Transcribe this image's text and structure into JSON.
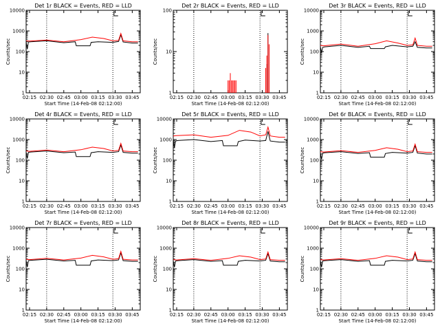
{
  "chart_data": [
    {
      "type": "line",
      "title": "Det 1r BLACK = Events, RED = LLD",
      "xlabel": "Start Time (14-Feb-08 02:12:00)",
      "ylabel": "Counts/sec",
      "xlim": [
        "02:12",
        "03:52"
      ],
      "ylim": [
        1,
        10000
      ],
      "yscale": "log",
      "x_ticks": [
        "02:15",
        "02:30",
        "02:45",
        "03:00",
        "03:15",
        "03:30",
        "03:45"
      ],
      "y_ticks": [
        "1",
        "10",
        "100",
        "1000",
        "10000"
      ],
      "series": [
        {
          "name": "Events",
          "color": "#000000",
          "x": [
            "02:12",
            "02:13",
            "02:14",
            "02:16",
            "02:30",
            "02:45",
            "02:55",
            "02:56",
            "03:08",
            "03:09",
            "03:15",
            "03:28",
            "03:33",
            "03:35",
            "03:37",
            "03:45",
            "03:50"
          ],
          "values": [
            300,
            130,
            290,
            300,
            330,
            270,
            300,
            190,
            190,
            280,
            300,
            280,
            310,
            650,
            290,
            260,
            260
          ]
        },
        {
          "name": "LLD",
          "color": "#ff0000",
          "x": [
            "02:12",
            "02:15",
            "02:30",
            "02:45",
            "03:00",
            "03:10",
            "03:20",
            "03:28",
            "03:33",
            "03:35",
            "03:37",
            "03:45",
            "03:50"
          ],
          "values": [
            330,
            320,
            360,
            300,
            380,
            500,
            430,
            330,
            350,
            750,
            330,
            300,
            300
          ]
        }
      ],
      "vlines": [
        "02:30",
        "03:28"
      ]
    },
    {
      "type": "line",
      "title": "Det 2r BLACK = Events, RED = LLD",
      "xlabel": "Start Time (14-Feb-08 02:12:00)",
      "ylabel": "Counts/sec",
      "xlim": [
        "02:12",
        "03:52"
      ],
      "ylim": [
        1,
        100
      ],
      "yscale": "log",
      "x_ticks": [
        "02:15",
        "02:30",
        "02:45",
        "03:00",
        "03:15",
        "03:30",
        "03:45"
      ],
      "y_ticks": [
        "1",
        "10",
        "100"
      ],
      "series": [
        {
          "name": "Events",
          "color": "#000000",
          "x": [
            "03:33",
            "03:34",
            "03:35"
          ],
          "values": [
            1,
            5,
            28
          ]
        },
        {
          "name": "LLD",
          "color": "#ff0000",
          "x": [
            "03:00",
            "03:01",
            "03:02",
            "03:03",
            "03:04",
            "03:05",
            "03:06",
            "03:07",
            "03:33",
            "03:34",
            "03:35",
            "03:36"
          ],
          "values": [
            2,
            2,
            3,
            2,
            2,
            2,
            2,
            2,
            4,
            8,
            25,
            15
          ]
        }
      ],
      "vlines": [
        "02:30",
        "03:28"
      ]
    },
    {
      "type": "line",
      "title": "Det 3r BLACK = Events, RED = LLD",
      "xlabel": "Start Time (14-Feb-08 02:12:00)",
      "ylabel": "Counts/sec",
      "xlim": [
        "02:12",
        "03:52"
      ],
      "ylim": [
        1,
        10000
      ],
      "yscale": "log",
      "x_ticks": [
        "02:15",
        "02:30",
        "02:45",
        "03:00",
        "03:15",
        "03:30",
        "03:45"
      ],
      "y_ticks": [
        "1",
        "10",
        "100",
        "1000",
        "10000"
      ],
      "series": [
        {
          "name": "Events",
          "color": "#000000",
          "x": [
            "02:12",
            "02:13",
            "02:14",
            "02:16",
            "02:30",
            "02:45",
            "02:55",
            "02:56",
            "03:08",
            "03:09",
            "03:15",
            "03:28",
            "03:33",
            "03:35",
            "03:37",
            "03:45",
            "03:50"
          ],
          "values": [
            170,
            90,
            160,
            170,
            200,
            160,
            180,
            140,
            140,
            170,
            200,
            170,
            180,
            300,
            160,
            150,
            150
          ]
        },
        {
          "name": "LLD",
          "color": "#ff0000",
          "x": [
            "02:12",
            "02:15",
            "02:30",
            "02:45",
            "03:00",
            "03:10",
            "03:20",
            "03:28",
            "03:33",
            "03:35",
            "03:37",
            "03:45",
            "03:50"
          ],
          "values": [
            200,
            190,
            230,
            180,
            240,
            330,
            260,
            200,
            210,
            450,
            200,
            180,
            180
          ]
        }
      ],
      "vlines": [
        "02:30",
        "03:28"
      ]
    },
    {
      "type": "line",
      "title": "Det 4r BLACK = Events, RED = LLD",
      "xlabel": "Start Time (14-Feb-08 02:12:00)",
      "ylabel": "Counts/sec",
      "xlim": [
        "02:12",
        "03:52"
      ],
      "ylim": [
        1,
        10000
      ],
      "yscale": "log",
      "x_ticks": [
        "02:15",
        "02:30",
        "02:45",
        "03:00",
        "03:15",
        "03:30",
        "03:45"
      ],
      "y_ticks": [
        "1",
        "10",
        "100",
        "1000",
        "10000"
      ],
      "series": [
        {
          "name": "Events",
          "color": "#000000",
          "x": [
            "02:12",
            "02:13",
            "02:14",
            "02:16",
            "02:30",
            "02:45",
            "02:55",
            "02:56",
            "03:08",
            "03:09",
            "03:15",
            "03:28",
            "03:33",
            "03:35",
            "03:37",
            "03:45",
            "03:50"
          ],
          "values": [
            250,
            120,
            240,
            250,
            280,
            230,
            250,
            150,
            150,
            230,
            260,
            240,
            260,
            550,
            240,
            220,
            220
          ]
        },
        {
          "name": "LLD",
          "color": "#ff0000",
          "x": [
            "02:12",
            "02:15",
            "02:30",
            "02:45",
            "03:00",
            "03:10",
            "03:20",
            "03:28",
            "03:33",
            "03:35",
            "03:37",
            "03:45",
            "03:50"
          ],
          "values": [
            280,
            270,
            310,
            260,
            320,
            430,
            370,
            280,
            300,
            650,
            280,
            260,
            260
          ]
        }
      ],
      "vlines": [
        "02:30",
        "03:28"
      ]
    },
    {
      "type": "line",
      "title": "Det 5r BLACK = Events, RED = LLD",
      "xlabel": "Start Time (14-Feb-08 02:12:00)",
      "ylabel": "Counts/sec",
      "xlim": [
        "02:12",
        "03:52"
      ],
      "ylim": [
        1,
        10000
      ],
      "yscale": "log",
      "x_ticks": [
        "02:15",
        "02:30",
        "02:45",
        "03:00",
        "03:15",
        "03:30",
        "03:45"
      ],
      "y_ticks": [
        "1",
        "10",
        "100",
        "1000",
        "10000"
      ],
      "series": [
        {
          "name": "Events",
          "color": "#000000",
          "x": [
            "02:12",
            "02:13",
            "02:14",
            "02:16",
            "02:30",
            "02:45",
            "02:55",
            "02:56",
            "03:08",
            "03:09",
            "03:15",
            "03:28",
            "03:33",
            "03:35",
            "03:37",
            "03:45",
            "03:50"
          ],
          "values": [
            900,
            400,
            850,
            900,
            1000,
            800,
            900,
            500,
            500,
            800,
            950,
            850,
            900,
            2500,
            850,
            750,
            750
          ]
        },
        {
          "name": "LLD",
          "color": "#ff0000",
          "x": [
            "02:12",
            "02:15",
            "02:30",
            "02:45",
            "03:00",
            "03:10",
            "03:20",
            "03:28",
            "03:33",
            "03:35",
            "03:37",
            "03:45",
            "03:50"
          ],
          "values": [
            1500,
            1550,
            1700,
            1300,
            1600,
            2800,
            2300,
            1500,
            1700,
            4000,
            1500,
            1300,
            1300
          ]
        }
      ],
      "vlines": [
        "02:30",
        "03:28"
      ]
    },
    {
      "type": "line",
      "title": "Det 6r BLACK = Events, RED = LLD",
      "xlabel": "Start Time (14-Feb-08 02:12:00)",
      "ylabel": "Counts/sec",
      "xlim": [
        "02:12",
        "03:52"
      ],
      "ylim": [
        1,
        10000
      ],
      "yscale": "log",
      "x_ticks": [
        "02:15",
        "02:30",
        "02:45",
        "03:00",
        "03:15",
        "03:30",
        "03:45"
      ],
      "y_ticks": [
        "1",
        "10",
        "100",
        "1000",
        "10000"
      ],
      "series": [
        {
          "name": "Events",
          "color": "#000000",
          "x": [
            "02:12",
            "02:13",
            "02:14",
            "02:16",
            "02:30",
            "02:45",
            "02:55",
            "02:56",
            "03:08",
            "03:09",
            "03:15",
            "03:28",
            "03:33",
            "03:35",
            "03:37",
            "03:45",
            "03:50"
          ],
          "values": [
            230,
            110,
            220,
            230,
            260,
            210,
            230,
            140,
            140,
            210,
            240,
            220,
            240,
            500,
            220,
            200,
            200
          ]
        },
        {
          "name": "LLD",
          "color": "#ff0000",
          "x": [
            "02:12",
            "02:15",
            "02:30",
            "02:45",
            "03:00",
            "03:10",
            "03:20",
            "03:28",
            "03:33",
            "03:35",
            "03:37",
            "03:45",
            "03:50"
          ],
          "values": [
            260,
            250,
            290,
            240,
            300,
            400,
            340,
            260,
            280,
            600,
            260,
            240,
            240
          ]
        }
      ],
      "vlines": [
        "02:30",
        "03:28"
      ]
    },
    {
      "type": "line",
      "title": "Det 7r BLACK = Events, RED = LLD",
      "xlabel": "Start Time (14-Feb-08 02:12:00)",
      "ylabel": "Counts/sec",
      "xlim": [
        "02:12",
        "03:52"
      ],
      "ylim": [
        1,
        10000
      ],
      "yscale": "log",
      "x_ticks": [
        "02:15",
        "02:30",
        "02:45",
        "03:00",
        "03:15",
        "03:30",
        "03:45"
      ],
      "y_ticks": [
        "1",
        "10",
        "100",
        "1000",
        "10000"
      ],
      "series": [
        {
          "name": "Events",
          "color": "#000000",
          "x": [
            "02:12",
            "02:13",
            "02:14",
            "02:16",
            "02:30",
            "02:45",
            "02:55",
            "02:56",
            "03:08",
            "03:09",
            "03:15",
            "03:28",
            "03:33",
            "03:35",
            "03:37",
            "03:45",
            "03:50"
          ],
          "values": [
            260,
            120,
            250,
            260,
            290,
            240,
            260,
            150,
            150,
            240,
            270,
            250,
            270,
            600,
            250,
            230,
            230
          ]
        },
        {
          "name": "LLD",
          "color": "#ff0000",
          "x": [
            "02:12",
            "02:15",
            "02:30",
            "02:45",
            "03:00",
            "03:10",
            "03:20",
            "03:28",
            "03:33",
            "03:35",
            "03:37",
            "03:45",
            "03:50"
          ],
          "values": [
            290,
            280,
            320,
            270,
            330,
            450,
            380,
            290,
            310,
            700,
            290,
            270,
            270
          ]
        }
      ],
      "vlines": [
        "02:30",
        "03:28"
      ]
    },
    {
      "type": "line",
      "title": "Det 8r BLACK = Events, RED = LLD",
      "xlabel": "Start Time (14-Feb-08 02:12:00)",
      "ylabel": "Counts/sec",
      "xlim": [
        "02:12",
        "03:52"
      ],
      "ylim": [
        1,
        10000
      ],
      "yscale": "log",
      "x_ticks": [
        "02:15",
        "02:30",
        "02:45",
        "03:00",
        "03:15",
        "03:30",
        "03:45"
      ],
      "y_ticks": [
        "1",
        "10",
        "100",
        "1000",
        "10000"
      ],
      "series": [
        {
          "name": "Events",
          "color": "#000000",
          "x": [
            "02:12",
            "02:13",
            "02:14",
            "02:16",
            "02:30",
            "02:45",
            "02:55",
            "02:56",
            "03:08",
            "03:09",
            "03:15",
            "03:28",
            "03:33",
            "03:35",
            "03:37",
            "03:45",
            "03:50"
          ],
          "values": [
            250,
            120,
            240,
            250,
            280,
            230,
            250,
            150,
            150,
            230,
            260,
            240,
            260,
            550,
            240,
            220,
            220
          ]
        },
        {
          "name": "LLD",
          "color": "#ff0000",
          "x": [
            "02:12",
            "02:15",
            "02:30",
            "02:45",
            "03:00",
            "03:10",
            "03:20",
            "03:28",
            "03:33",
            "03:35",
            "03:37",
            "03:45",
            "03:50"
          ],
          "values": [
            280,
            270,
            310,
            260,
            320,
            430,
            370,
            280,
            300,
            650,
            280,
            260,
            260
          ]
        }
      ],
      "vlines": [
        "02:30",
        "03:28"
      ]
    },
    {
      "type": "line",
      "title": "Det 9r BLACK = Events, RED = LLD",
      "xlabel": "Start Time (14-Feb-08 02:12:00)",
      "ylabel": "Counts/sec",
      "xlim": [
        "02:12",
        "03:52"
      ],
      "ylim": [
        1,
        10000
      ],
      "yscale": "log",
      "x_ticks": [
        "02:15",
        "02:30",
        "02:45",
        "03:00",
        "03:15",
        "03:30",
        "03:45"
      ],
      "y_ticks": [
        "1",
        "10",
        "100",
        "1000",
        "10000"
      ],
      "series": [
        {
          "name": "Events",
          "color": "#000000",
          "x": [
            "02:12",
            "02:13",
            "02:14",
            "02:16",
            "02:30",
            "02:45",
            "02:55",
            "02:56",
            "03:08",
            "03:09",
            "03:15",
            "03:28",
            "03:33",
            "03:35",
            "03:37",
            "03:45",
            "03:50"
          ],
          "values": [
            250,
            120,
            240,
            250,
            280,
            230,
            250,
            150,
            150,
            230,
            260,
            240,
            260,
            550,
            240,
            220,
            220
          ]
        },
        {
          "name": "LLD",
          "color": "#ff0000",
          "x": [
            "02:12",
            "02:15",
            "02:30",
            "02:45",
            "03:00",
            "03:10",
            "03:20",
            "03:28",
            "03:33",
            "03:35",
            "03:37",
            "03:45",
            "03:50"
          ],
          "values": [
            280,
            270,
            310,
            260,
            320,
            430,
            370,
            280,
            300,
            650,
            280,
            260,
            260
          ]
        }
      ],
      "vlines": [
        "02:30",
        "03:28"
      ]
    }
  ]
}
